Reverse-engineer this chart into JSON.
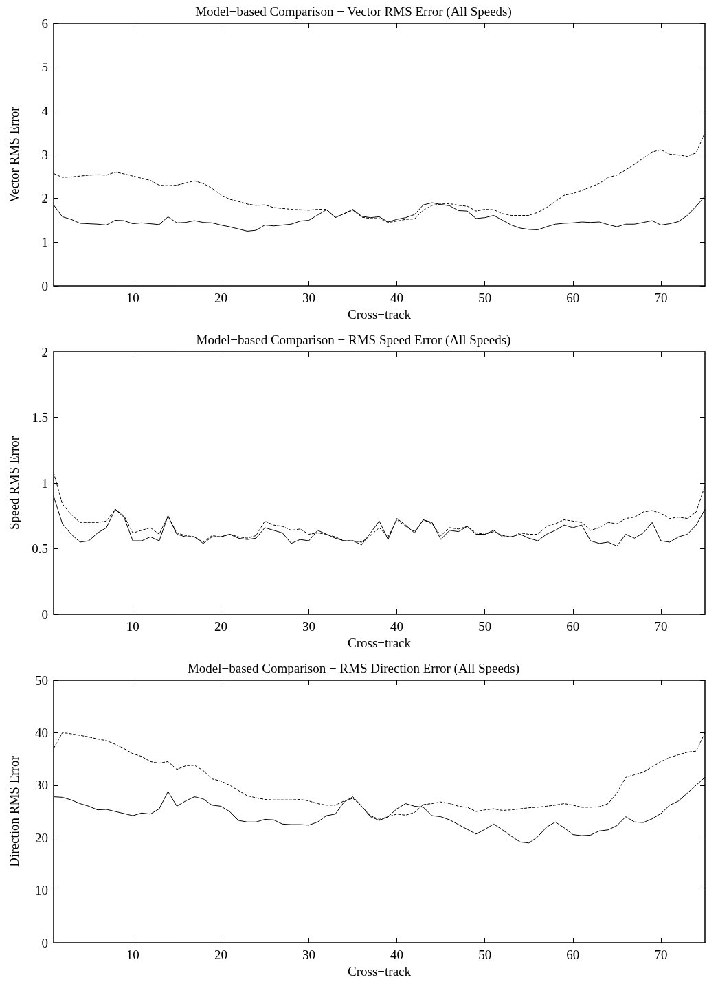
{
  "chart_data": [
    {
      "type": "line",
      "title": "Model−based Comparison − Vector RMS Error (All Speeds)",
      "xlabel": "Cross−track",
      "ylabel": "Vector RMS Error",
      "marker": "none",
      "x": [
        1,
        2,
        3,
        4,
        5,
        6,
        7,
        8,
        9,
        10,
        11,
        12,
        13,
        14,
        15,
        16,
        17,
        18,
        19,
        20,
        21,
        22,
        23,
        24,
        25,
        26,
        27,
        28,
        29,
        30,
        31,
        32,
        33,
        34,
        35,
        36,
        37,
        38,
        39,
        40,
        41,
        42,
        43,
        44,
        45,
        46,
        47,
        48,
        49,
        50,
        51,
        52,
        53,
        54,
        55,
        56,
        57,
        58,
        59,
        60,
        61,
        62,
        63,
        64,
        65,
        66,
        67,
        68,
        69,
        70,
        71,
        72,
        73,
        74,
        75
      ],
      "xlim": [
        1,
        75
      ],
      "xticks": [
        10,
        20,
        30,
        40,
        50,
        60,
        70
      ],
      "ylim": [
        0,
        6
      ],
      "yticks": [
        0,
        1,
        2,
        3,
        4,
        5,
        6
      ],
      "series": [
        {
          "color": "#000000",
          "line_style": "solid",
          "values": [
            1.85,
            1.58,
            1.52,
            1.43,
            1.42,
            1.41,
            1.39,
            1.5,
            1.49,
            1.42,
            1.44,
            1.42,
            1.4,
            1.58,
            1.44,
            1.45,
            1.49,
            1.45,
            1.44,
            1.39,
            1.35,
            1.3,
            1.25,
            1.27,
            1.39,
            1.37,
            1.39,
            1.41,
            1.48,
            1.5,
            1.62,
            1.74,
            1.56,
            1.65,
            1.75,
            1.59,
            1.56,
            1.58,
            1.46,
            1.52,
            1.56,
            1.63,
            1.85,
            1.9,
            1.86,
            1.83,
            1.72,
            1.71,
            1.54,
            1.56,
            1.61,
            1.5,
            1.39,
            1.32,
            1.29,
            1.28,
            1.35,
            1.41,
            1.43,
            1.44,
            1.46,
            1.45,
            1.46,
            1.4,
            1.35,
            1.41,
            1.41,
            1.45,
            1.49,
            1.39,
            1.42,
            1.47,
            1.61,
            1.82,
            2.05
          ]
        },
        {
          "color": "#000000",
          "line_style": "dashed",
          "values": [
            2.57,
            2.48,
            2.49,
            2.51,
            2.53,
            2.54,
            2.53,
            2.6,
            2.56,
            2.51,
            2.46,
            2.41,
            2.3,
            2.29,
            2.3,
            2.35,
            2.4,
            2.34,
            2.23,
            2.08,
            1.98,
            1.93,
            1.87,
            1.84,
            1.85,
            1.79,
            1.77,
            1.75,
            1.74,
            1.73,
            1.75,
            1.75,
            1.57,
            1.65,
            1.73,
            1.57,
            1.54,
            1.54,
            1.45,
            1.48,
            1.52,
            1.53,
            1.73,
            1.84,
            1.87,
            1.88,
            1.84,
            1.82,
            1.71,
            1.75,
            1.74,
            1.65,
            1.61,
            1.61,
            1.61,
            1.68,
            1.79,
            1.93,
            2.07,
            2.11,
            2.18,
            2.26,
            2.34,
            2.48,
            2.53,
            2.65,
            2.78,
            2.92,
            3.06,
            3.11,
            3.01,
            2.99,
            2.96,
            3.04,
            3.5
          ]
        }
      ]
    },
    {
      "type": "line",
      "title": "Model−based Comparison − RMS Speed Error (All Speeds)",
      "xlabel": "Cross−track",
      "ylabel": "Speed RMS Error",
      "marker": "none",
      "x": [
        1,
        2,
        3,
        4,
        5,
        6,
        7,
        8,
        9,
        10,
        11,
        12,
        13,
        14,
        15,
        16,
        17,
        18,
        19,
        20,
        21,
        22,
        23,
        24,
        25,
        26,
        27,
        28,
        29,
        30,
        31,
        32,
        33,
        34,
        35,
        36,
        37,
        38,
        39,
        40,
        41,
        42,
        43,
        44,
        45,
        46,
        47,
        48,
        49,
        50,
        51,
        52,
        53,
        54,
        55,
        56,
        57,
        58,
        59,
        60,
        61,
        62,
        63,
        64,
        65,
        66,
        67,
        68,
        69,
        70,
        71,
        72,
        73,
        74,
        75
      ],
      "xlim": [
        1,
        75
      ],
      "xticks": [
        10,
        20,
        30,
        40,
        50,
        60,
        70
      ],
      "ylim": [
        0,
        2
      ],
      "yticks": [
        0,
        0.5,
        1,
        1.5,
        2
      ],
      "series": [
        {
          "color": "#000000",
          "line_style": "solid",
          "values": [
            0.9,
            0.69,
            0.61,
            0.55,
            0.56,
            0.62,
            0.66,
            0.8,
            0.74,
            0.56,
            0.56,
            0.59,
            0.56,
            0.75,
            0.61,
            0.59,
            0.59,
            0.54,
            0.59,
            0.59,
            0.61,
            0.58,
            0.57,
            0.58,
            0.66,
            0.64,
            0.62,
            0.54,
            0.57,
            0.56,
            0.64,
            0.61,
            0.58,
            0.56,
            0.56,
            0.53,
            0.62,
            0.71,
            0.57,
            0.73,
            0.68,
            0.62,
            0.72,
            0.7,
            0.57,
            0.64,
            0.63,
            0.67,
            0.61,
            0.61,
            0.64,
            0.59,
            0.59,
            0.61,
            0.58,
            0.56,
            0.61,
            0.64,
            0.68,
            0.66,
            0.68,
            0.56,
            0.54,
            0.55,
            0.52,
            0.61,
            0.58,
            0.62,
            0.7,
            0.56,
            0.55,
            0.59,
            0.61,
            0.68,
            0.8
          ]
        },
        {
          "color": "#000000",
          "line_style": "dashed",
          "values": [
            1.08,
            0.84,
            0.76,
            0.7,
            0.7,
            0.7,
            0.71,
            0.8,
            0.75,
            0.62,
            0.64,
            0.66,
            0.61,
            0.75,
            0.62,
            0.6,
            0.59,
            0.55,
            0.6,
            0.59,
            0.61,
            0.59,
            0.58,
            0.6,
            0.71,
            0.68,
            0.67,
            0.64,
            0.65,
            0.61,
            0.62,
            0.61,
            0.59,
            0.56,
            0.56,
            0.55,
            0.6,
            0.66,
            0.59,
            0.72,
            0.67,
            0.63,
            0.72,
            0.69,
            0.6,
            0.66,
            0.65,
            0.67,
            0.62,
            0.61,
            0.63,
            0.6,
            0.59,
            0.62,
            0.61,
            0.61,
            0.67,
            0.69,
            0.72,
            0.71,
            0.7,
            0.64,
            0.66,
            0.7,
            0.69,
            0.73,
            0.74,
            0.78,
            0.79,
            0.77,
            0.73,
            0.74,
            0.73,
            0.78,
            0.98
          ]
        }
      ]
    },
    {
      "type": "line",
      "title": "Model−based Comparison − RMS Direction Error (All Speeds)",
      "xlabel": "Cross−track",
      "ylabel": "Direction RMS Error",
      "marker": "none",
      "x": [
        1,
        2,
        3,
        4,
        5,
        6,
        7,
        8,
        9,
        10,
        11,
        12,
        13,
        14,
        15,
        16,
        17,
        18,
        19,
        20,
        21,
        22,
        23,
        24,
        25,
        26,
        27,
        28,
        29,
        30,
        31,
        32,
        33,
        34,
        35,
        36,
        37,
        38,
        39,
        40,
        41,
        42,
        43,
        44,
        45,
        46,
        47,
        48,
        49,
        50,
        51,
        52,
        53,
        54,
        55,
        56,
        57,
        58,
        59,
        60,
        61,
        62,
        63,
        64,
        65,
        66,
        67,
        68,
        69,
        70,
        71,
        72,
        73,
        74,
        75
      ],
      "xlim": [
        1,
        75
      ],
      "xticks": [
        10,
        20,
        30,
        40,
        50,
        60,
        70
      ],
      "ylim": [
        0,
        50
      ],
      "yticks": [
        0,
        10,
        20,
        30,
        40,
        50
      ],
      "series": [
        {
          "color": "#000000",
          "line_style": "solid",
          "values": [
            27.8,
            27.7,
            27.2,
            26.5,
            26,
            25.3,
            25.4,
            25,
            24.6,
            24.2,
            24.7,
            24.5,
            25.5,
            28.8,
            26,
            27,
            27.8,
            27.4,
            26.2,
            26,
            25,
            23.3,
            23,
            23,
            23.5,
            23.4,
            22.6,
            22.5,
            22.5,
            22.4,
            23,
            24.2,
            24.5,
            26.8,
            27.8,
            26,
            24,
            23.3,
            24,
            25.5,
            26.5,
            26,
            25.8,
            24.2,
            24,
            23.4,
            22.5,
            21.6,
            20.7,
            21.6,
            22.6,
            21.5,
            20.3,
            19.2,
            19,
            20.2,
            22,
            23,
            21.9,
            20.6,
            20.4,
            20.5,
            21.3,
            21.5,
            22.3,
            24,
            23,
            22.9,
            23.6,
            24.6,
            26.2,
            27,
            28.5,
            30,
            31.5
          ]
        },
        {
          "color": "#000000",
          "line_style": "dashed",
          "values": [
            37,
            40,
            39.8,
            39.5,
            39.2,
            38.8,
            38.5,
            37.8,
            37,
            36,
            35.5,
            34.5,
            34.2,
            34.5,
            33,
            33.7,
            33.8,
            32.8,
            31.2,
            30.8,
            30,
            29,
            28,
            27.6,
            27.3,
            27.2,
            27.2,
            27.2,
            27.3,
            27,
            26.5,
            26.2,
            26.2,
            27,
            27.5,
            26,
            24.2,
            23.5,
            24,
            24.5,
            24.3,
            24.8,
            26.3,
            26.5,
            26.8,
            26.5,
            26,
            25.8,
            25,
            25.3,
            25.5,
            25.2,
            25.3,
            25.5,
            25.7,
            25.8,
            26,
            26.2,
            26.5,
            26.2,
            25.8,
            25.8,
            25.9,
            26.5,
            28.5,
            31.5,
            32,
            32.5,
            33.5,
            34.5,
            35.3,
            35.8,
            36.3,
            36.5,
            40
          ]
        }
      ]
    }
  ]
}
